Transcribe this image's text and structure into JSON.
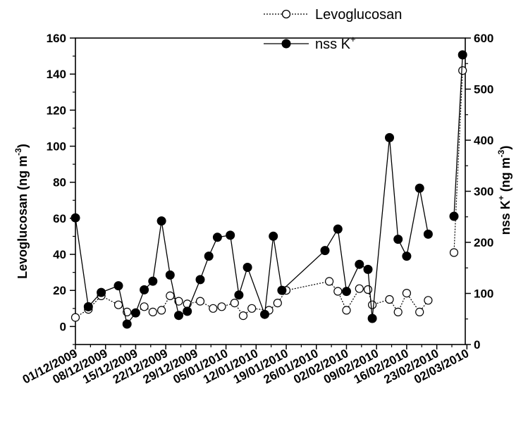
{
  "chart_data": {
    "type": "line",
    "x_dates": [
      "01/12/2009",
      "08/12/2009",
      "15/12/2009",
      "22/12/2009",
      "29/12/2009",
      "05/01/2010",
      "12/01/2010",
      "19/01/2010",
      "26/01/2010",
      "02/02/2010",
      "09/02/2010",
      "16/02/2010",
      "23/02/2010",
      "02/03/2010"
    ],
    "y_left": {
      "label_main": "Levoglucosan (ng m",
      "label_sup": "-3",
      "label_end": ")",
      "ylim": [
        -10,
        160
      ],
      "ticks": [
        "0",
        "20",
        "40",
        "60",
        "80",
        "100",
        "120",
        "140",
        "160"
      ]
    },
    "y_right": {
      "label_main": "nss K",
      "label_sup1": "+",
      "label_mid": " (ng m",
      "label_sup2": "-3",
      "label_end": ")",
      "ylim": [
        0,
        600
      ],
      "ticks": [
        "0",
        "100",
        "200",
        "300",
        "400",
        "500",
        "600"
      ]
    },
    "legend": {
      "levo": "Levoglucosan",
      "nssk_main": "nss K",
      "nssk_sup": "+"
    },
    "series": [
      {
        "name": "Levoglucosan",
        "axis": "left",
        "style": "dotted-open-circle",
        "segments": [
          [
            [
              "2009-12-01",
              5
            ],
            [
              "2009-12-04",
              9.5
            ],
            [
              "2009-12-07",
              17
            ],
            [
              "2009-12-11",
              12
            ],
            [
              "2009-12-13",
              8
            ],
            [
              "2009-12-15",
              7.5
            ],
            [
              "2009-12-17",
              11
            ],
            [
              "2009-12-19",
              8
            ],
            [
              "2009-12-21",
              9
            ],
            [
              "2009-12-23",
              17
            ],
            [
              "2009-12-25",
              14
            ],
            [
              "2009-12-27",
              12.5
            ],
            [
              "2009-12-30",
              14
            ],
            [
              "2010-01-02",
              10
            ],
            [
              "2010-01-04",
              11
            ],
            [
              "2010-01-07",
              13
            ],
            [
              "2010-01-09",
              6
            ],
            [
              "2010-01-11",
              10
            ],
            [
              "2010-01-15",
              9
            ],
            [
              "2010-01-17",
              13
            ],
            [
              "2010-01-19",
              20
            ],
            [
              "2010-01-29",
              25
            ],
            [
              "2010-01-31",
              19.5
            ],
            [
              "2010-02-02",
              9
            ],
            [
              "2010-02-05",
              21
            ],
            [
              "2010-02-07",
              20.5
            ],
            [
              "2010-02-08",
              12
            ],
            [
              "2010-02-12",
              15
            ],
            [
              "2010-02-14",
              8
            ],
            [
              "2010-02-16",
              18.5
            ],
            [
              "2010-02-19",
              8
            ],
            [
              "2010-02-21",
              14.5
            ]
          ],
          [
            [
              "2010-02-27",
              41
            ],
            [
              "2010-03-01",
              142
            ]
          ]
        ]
      },
      {
        "name": "nss K+",
        "axis": "right",
        "style": "solid-filled-circle",
        "segments": [
          [
            [
              "2009-12-01",
              248
            ],
            [
              "2009-12-04",
              74
            ],
            [
              "2009-12-07",
              102
            ],
            [
              "2009-12-11",
              115
            ],
            [
              "2009-12-13",
              40
            ],
            [
              "2009-12-15",
              62
            ],
            [
              "2009-12-17",
              107
            ],
            [
              "2009-12-19",
              124
            ],
            [
              "2009-12-21",
              242
            ],
            [
              "2009-12-23",
              136
            ],
            [
              "2009-12-25",
              57
            ],
            [
              "2009-12-27",
              65
            ],
            [
              "2009-12-30",
              127
            ],
            [
              "2010-01-01",
              173
            ],
            [
              "2010-01-03",
              210
            ],
            [
              "2010-01-06",
              214
            ],
            [
              "2010-01-08",
              97
            ],
            [
              "2010-01-10",
              151
            ],
            [
              "2010-01-14",
              59
            ],
            [
              "2010-01-16",
              212
            ],
            [
              "2010-01-18",
              106
            ],
            [
              "2010-01-28",
              184
            ],
            [
              "2010-01-31",
              226
            ],
            [
              "2010-02-02",
              104
            ],
            [
              "2010-02-05",
              157
            ],
            [
              "2010-02-07",
              147
            ],
            [
              "2010-02-08",
              51
            ],
            [
              "2010-02-12",
              405
            ],
            [
              "2010-02-14",
              206
            ],
            [
              "2010-02-16",
              173
            ],
            [
              "2010-02-19",
              306
            ],
            [
              "2010-02-21",
              216
            ]
          ],
          [
            [
              "2010-02-27",
              251
            ],
            [
              "2010-03-01",
              567
            ]
          ]
        ]
      }
    ]
  }
}
